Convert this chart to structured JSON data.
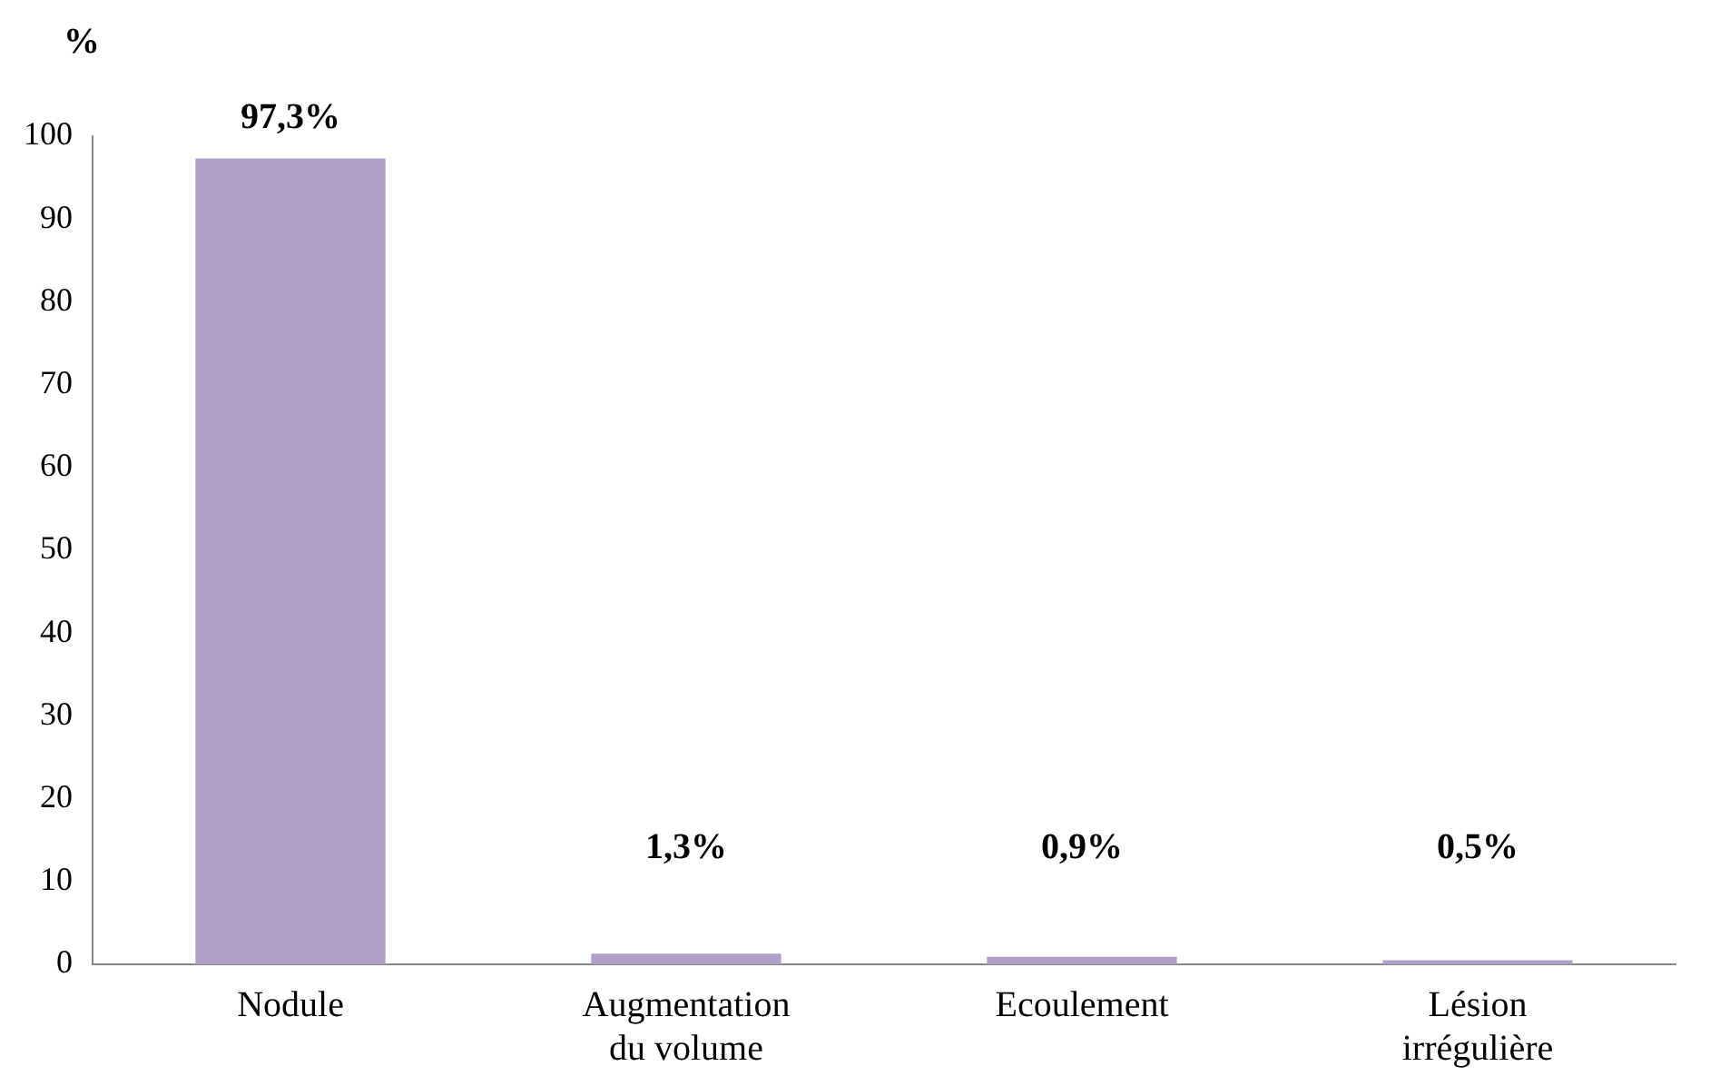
{
  "chart_data": {
    "type": "bar",
    "ylabel": "%",
    "categories": [
      "Nodule",
      "Augmentation\ndu volume",
      "Ecoulement",
      "Lésion\nirrégulière"
    ],
    "values": [
      97.3,
      1.3,
      0.9,
      0.5
    ],
    "value_labels": [
      "97,3%",
      "1,3%",
      "0,9%",
      "0,5%"
    ],
    "color": "#b09fc7",
    "ylim": [
      0,
      100
    ],
    "yticks": [
      0,
      10,
      20,
      30,
      40,
      50,
      60,
      70,
      80,
      90,
      100
    ],
    "grid": false,
    "legend": false
  }
}
